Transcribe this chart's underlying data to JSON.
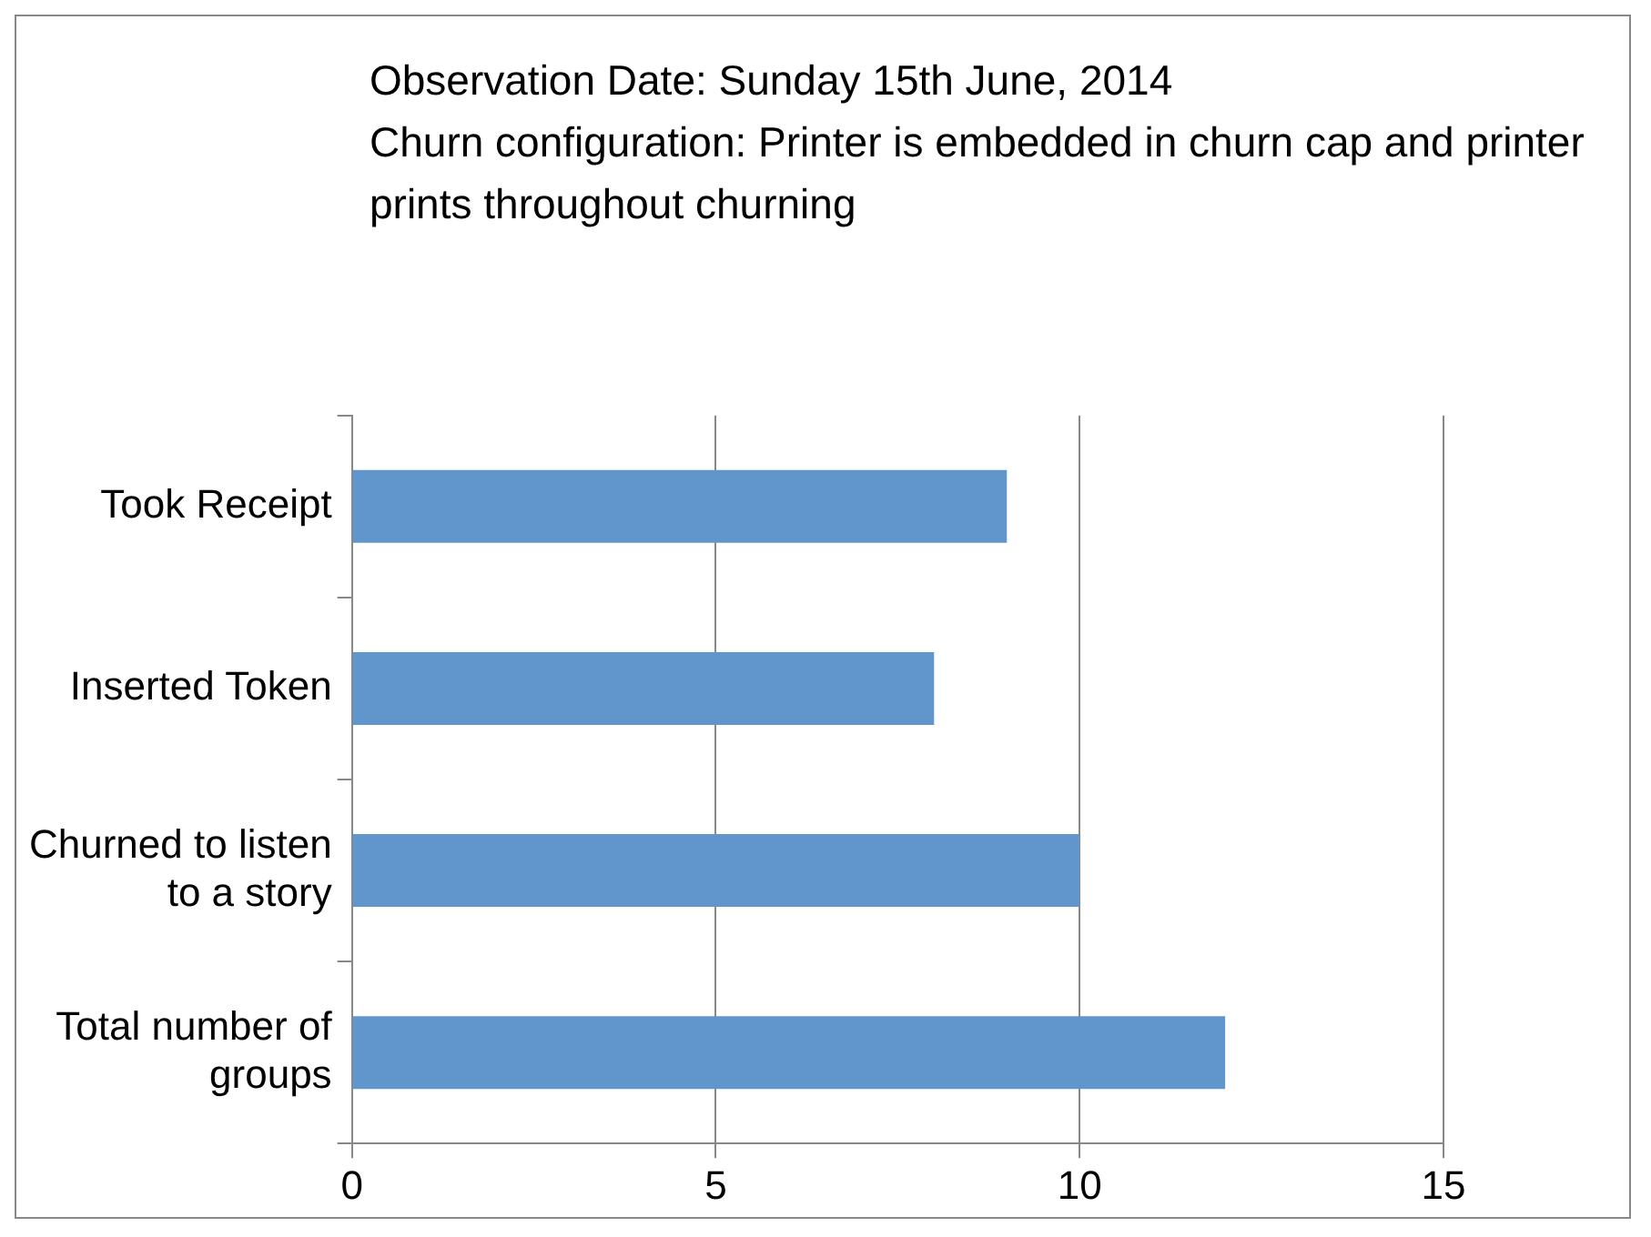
{
  "chart_data": {
    "type": "bar",
    "orientation": "horizontal",
    "title": "Observation Date: Sunday 15th June, 2014",
    "subtitle": "Churn configuration: Printer is embedded in churn cap and printer prints throughout churning",
    "categories": [
      "Took Receipt",
      "Inserted Token",
      "Churned to listen to a story",
      "Total number of groups"
    ],
    "values": [
      9,
      8,
      10,
      12
    ],
    "color": "#6096cc",
    "xlim": [
      0,
      15
    ],
    "xticks": [
      0,
      5,
      10,
      15
    ],
    "grid": "x",
    "legend": false
  }
}
